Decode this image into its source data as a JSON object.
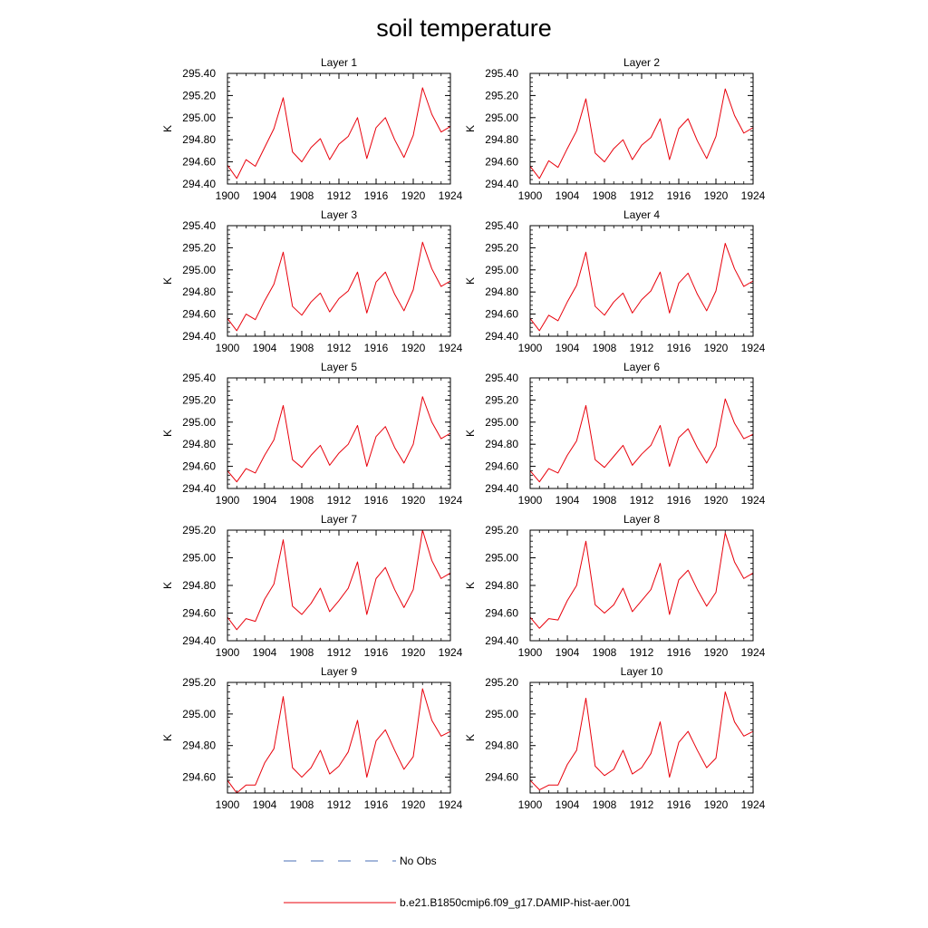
{
  "title": "soil temperature",
  "colors": {
    "model": "#e8000b",
    "obs": "#4a6fb5",
    "axis": "#000000"
  },
  "legend": {
    "obs_label": "No Obs",
    "model_label": "b.e21.B1850cmip6.f09_g17.DAMIP-hist-aer.001"
  },
  "chart_data": [
    {
      "type": "line",
      "title": "Layer 1",
      "ylabel": "K",
      "x": [
        1900,
        1901,
        1902,
        1903,
        1904,
        1905,
        1906,
        1907,
        1908,
        1909,
        1910,
        1911,
        1912,
        1913,
        1914,
        1915,
        1916,
        1917,
        1918,
        1919,
        1920,
        1921,
        1922,
        1923,
        1924
      ],
      "xlim": [
        1900,
        1924
      ],
      "xticks": [
        1900,
        1904,
        1908,
        1912,
        1916,
        1920,
        1924
      ],
      "ylim": [
        294.4,
        295.4
      ],
      "yticks": [
        294.4,
        294.6,
        294.8,
        295.0,
        295.2,
        295.4
      ],
      "series": [
        {
          "name": "b.e21.B1850cmip6.f09_g17.DAMIP-hist-aer.001",
          "values": [
            294.57,
            294.45,
            294.62,
            294.56,
            294.73,
            294.9,
            295.18,
            294.69,
            294.6,
            294.73,
            294.81,
            294.62,
            294.76,
            294.83,
            295.0,
            294.63,
            294.91,
            295.0,
            294.8,
            294.64,
            294.84,
            295.27,
            295.03,
            294.87,
            294.92
          ]
        }
      ]
    },
    {
      "type": "line",
      "title": "Layer 2",
      "ylabel": "K",
      "x": [
        1900,
        1901,
        1902,
        1903,
        1904,
        1905,
        1906,
        1907,
        1908,
        1909,
        1910,
        1911,
        1912,
        1913,
        1914,
        1915,
        1916,
        1917,
        1918,
        1919,
        1920,
        1921,
        1922,
        1923,
        1924
      ],
      "xlim": [
        1900,
        1924
      ],
      "xticks": [
        1900,
        1904,
        1908,
        1912,
        1916,
        1920,
        1924
      ],
      "ylim": [
        294.4,
        295.4
      ],
      "yticks": [
        294.4,
        294.6,
        294.8,
        295.0,
        295.2,
        295.4
      ],
      "series": [
        {
          "name": "b.e21.B1850cmip6.f09_g17.DAMIP-hist-aer.001",
          "values": [
            294.56,
            294.45,
            294.61,
            294.55,
            294.72,
            294.88,
            295.17,
            294.68,
            294.6,
            294.72,
            294.8,
            294.62,
            294.75,
            294.82,
            294.99,
            294.62,
            294.9,
            294.99,
            294.79,
            294.63,
            294.83,
            295.26,
            295.02,
            294.86,
            294.91
          ]
        }
      ]
    },
    {
      "type": "line",
      "title": "Layer 3",
      "ylabel": "K",
      "x": [
        1900,
        1901,
        1902,
        1903,
        1904,
        1905,
        1906,
        1907,
        1908,
        1909,
        1910,
        1911,
        1912,
        1913,
        1914,
        1915,
        1916,
        1917,
        1918,
        1919,
        1920,
        1921,
        1922,
        1923,
        1924
      ],
      "xlim": [
        1900,
        1924
      ],
      "xticks": [
        1900,
        1904,
        1908,
        1912,
        1916,
        1920,
        1924
      ],
      "ylim": [
        294.4,
        295.4
      ],
      "yticks": [
        294.4,
        294.6,
        294.8,
        295.0,
        295.2,
        295.4
      ],
      "series": [
        {
          "name": "b.e21.B1850cmip6.f09_g17.DAMIP-hist-aer.001",
          "values": [
            294.56,
            294.45,
            294.6,
            294.55,
            294.72,
            294.87,
            295.16,
            294.67,
            294.59,
            294.71,
            294.79,
            294.62,
            294.74,
            294.81,
            294.98,
            294.61,
            294.89,
            294.98,
            294.78,
            294.63,
            294.82,
            295.25,
            295.01,
            294.85,
            294.9
          ]
        }
      ]
    },
    {
      "type": "line",
      "title": "Layer 4",
      "ylabel": "K",
      "x": [
        1900,
        1901,
        1902,
        1903,
        1904,
        1905,
        1906,
        1907,
        1908,
        1909,
        1910,
        1911,
        1912,
        1913,
        1914,
        1915,
        1916,
        1917,
        1918,
        1919,
        1920,
        1921,
        1922,
        1923,
        1924
      ],
      "xlim": [
        1900,
        1924
      ],
      "xticks": [
        1900,
        1904,
        1908,
        1912,
        1916,
        1920,
        1924
      ],
      "ylim": [
        294.4,
        295.4
      ],
      "yticks": [
        294.4,
        294.6,
        294.8,
        295.0,
        295.2,
        295.4
      ],
      "series": [
        {
          "name": "b.e21.B1850cmip6.f09_g17.DAMIP-hist-aer.001",
          "values": [
            294.56,
            294.45,
            294.59,
            294.54,
            294.71,
            294.86,
            295.16,
            294.67,
            294.59,
            294.71,
            294.79,
            294.61,
            294.73,
            294.81,
            294.98,
            294.61,
            294.88,
            294.97,
            294.78,
            294.63,
            294.81,
            295.24,
            295.01,
            294.85,
            294.9
          ]
        }
      ]
    },
    {
      "type": "line",
      "title": "Layer 5",
      "ylabel": "K",
      "x": [
        1900,
        1901,
        1902,
        1903,
        1904,
        1905,
        1906,
        1907,
        1908,
        1909,
        1910,
        1911,
        1912,
        1913,
        1914,
        1915,
        1916,
        1917,
        1918,
        1919,
        1920,
        1921,
        1922,
        1923,
        1924
      ],
      "xlim": [
        1900,
        1924
      ],
      "xticks": [
        1900,
        1904,
        1908,
        1912,
        1916,
        1920,
        1924
      ],
      "ylim": [
        294.4,
        295.4
      ],
      "yticks": [
        294.4,
        294.6,
        294.8,
        295.0,
        295.2,
        295.4
      ],
      "series": [
        {
          "name": "b.e21.B1850cmip6.f09_g17.DAMIP-hist-aer.001",
          "values": [
            294.56,
            294.46,
            294.58,
            294.54,
            294.7,
            294.84,
            295.15,
            294.66,
            294.59,
            294.7,
            294.79,
            294.61,
            294.72,
            294.8,
            294.97,
            294.6,
            294.87,
            294.96,
            294.77,
            294.63,
            294.8,
            295.23,
            295.0,
            294.85,
            294.9
          ]
        }
      ]
    },
    {
      "type": "line",
      "title": "Layer 6",
      "ylabel": "K",
      "x": [
        1900,
        1901,
        1902,
        1903,
        1904,
        1905,
        1906,
        1907,
        1908,
        1909,
        1910,
        1911,
        1912,
        1913,
        1914,
        1915,
        1916,
        1917,
        1918,
        1919,
        1920,
        1921,
        1922,
        1923,
        1924
      ],
      "xlim": [
        1900,
        1924
      ],
      "xticks": [
        1900,
        1904,
        1908,
        1912,
        1916,
        1920,
        1924
      ],
      "ylim": [
        294.4,
        295.4
      ],
      "yticks": [
        294.4,
        294.6,
        294.8,
        295.0,
        295.2,
        295.4
      ],
      "series": [
        {
          "name": "b.e21.B1850cmip6.f09_g17.DAMIP-hist-aer.001",
          "values": [
            294.56,
            294.46,
            294.58,
            294.54,
            294.7,
            294.83,
            295.15,
            294.66,
            294.59,
            294.69,
            294.79,
            294.61,
            294.71,
            294.79,
            294.97,
            294.6,
            294.86,
            294.94,
            294.77,
            294.63,
            294.78,
            295.21,
            294.99,
            294.85,
            294.89
          ]
        }
      ]
    },
    {
      "type": "line",
      "title": "Layer 7",
      "ylabel": "K",
      "x": [
        1900,
        1901,
        1902,
        1903,
        1904,
        1905,
        1906,
        1907,
        1908,
        1909,
        1910,
        1911,
        1912,
        1913,
        1914,
        1915,
        1916,
        1917,
        1918,
        1919,
        1920,
        1921,
        1922,
        1923,
        1924
      ],
      "xlim": [
        1900,
        1924
      ],
      "xticks": [
        1900,
        1904,
        1908,
        1912,
        1916,
        1920,
        1924
      ],
      "ylim": [
        294.4,
        295.2
      ],
      "yticks": [
        294.4,
        294.6,
        294.8,
        295.0,
        295.2
      ],
      "series": [
        {
          "name": "b.e21.B1850cmip6.f09_g17.DAMIP-hist-aer.001",
          "values": [
            294.57,
            294.48,
            294.56,
            294.54,
            294.7,
            294.81,
            295.13,
            294.65,
            294.59,
            294.67,
            294.78,
            294.61,
            294.69,
            294.78,
            294.97,
            294.59,
            294.85,
            294.93,
            294.77,
            294.64,
            294.77,
            295.2,
            294.98,
            294.85,
            294.89
          ]
        }
      ]
    },
    {
      "type": "line",
      "title": "Layer 8",
      "ylabel": "K",
      "x": [
        1900,
        1901,
        1902,
        1903,
        1904,
        1905,
        1906,
        1907,
        1908,
        1909,
        1910,
        1911,
        1912,
        1913,
        1914,
        1915,
        1916,
        1917,
        1918,
        1919,
        1920,
        1921,
        1922,
        1923,
        1924
      ],
      "xlim": [
        1900,
        1924
      ],
      "xticks": [
        1900,
        1904,
        1908,
        1912,
        1916,
        1920,
        1924
      ],
      "ylim": [
        294.4,
        295.2
      ],
      "yticks": [
        294.4,
        294.6,
        294.8,
        295.0,
        295.2
      ],
      "series": [
        {
          "name": "b.e21.B1850cmip6.f09_g17.DAMIP-hist-aer.001",
          "values": [
            294.57,
            294.49,
            294.56,
            294.55,
            294.69,
            294.8,
            295.12,
            294.66,
            294.6,
            294.66,
            294.78,
            294.61,
            294.69,
            294.77,
            294.96,
            294.59,
            294.84,
            294.91,
            294.77,
            294.65,
            294.75,
            295.18,
            294.97,
            294.85,
            294.89
          ]
        }
      ]
    },
    {
      "type": "line",
      "title": "Layer 9",
      "ylabel": "K",
      "x": [
        1900,
        1901,
        1902,
        1903,
        1904,
        1905,
        1906,
        1907,
        1908,
        1909,
        1910,
        1911,
        1912,
        1913,
        1914,
        1915,
        1916,
        1917,
        1918,
        1919,
        1920,
        1921,
        1922,
        1923,
        1924
      ],
      "xlim": [
        1900,
        1924
      ],
      "xticks": [
        1900,
        1904,
        1908,
        1912,
        1916,
        1920,
        1924
      ],
      "ylim": [
        294.5,
        295.2
      ],
      "yticks": [
        294.6,
        294.8,
        295.0,
        295.2
      ],
      "series": [
        {
          "name": "b.e21.B1850cmip6.f09_g17.DAMIP-hist-aer.001",
          "values": [
            294.58,
            294.5,
            294.55,
            294.55,
            294.69,
            294.78,
            295.11,
            294.66,
            294.6,
            294.66,
            294.77,
            294.62,
            294.67,
            294.76,
            294.96,
            294.6,
            294.83,
            294.9,
            294.77,
            294.65,
            294.73,
            295.16,
            294.96,
            294.86,
            294.89
          ]
        }
      ]
    },
    {
      "type": "line",
      "title": "Layer 10",
      "ylabel": "K",
      "x": [
        1900,
        1901,
        1902,
        1903,
        1904,
        1905,
        1906,
        1907,
        1908,
        1909,
        1910,
        1911,
        1912,
        1913,
        1914,
        1915,
        1916,
        1917,
        1918,
        1919,
        1920,
        1921,
        1922,
        1923,
        1924
      ],
      "xlim": [
        1900,
        1924
      ],
      "xticks": [
        1900,
        1904,
        1908,
        1912,
        1916,
        1920,
        1924
      ],
      "ylim": [
        294.5,
        295.2
      ],
      "yticks": [
        294.6,
        294.8,
        295.0,
        295.2
      ],
      "series": [
        {
          "name": "b.e21.B1850cmip6.f09_g17.DAMIP-hist-aer.001",
          "values": [
            294.58,
            294.52,
            294.55,
            294.55,
            294.68,
            294.77,
            295.1,
            294.67,
            294.61,
            294.65,
            294.77,
            294.62,
            294.66,
            294.75,
            294.95,
            294.6,
            294.82,
            294.89,
            294.77,
            294.66,
            294.72,
            295.14,
            294.95,
            294.86,
            294.89
          ]
        }
      ]
    }
  ]
}
